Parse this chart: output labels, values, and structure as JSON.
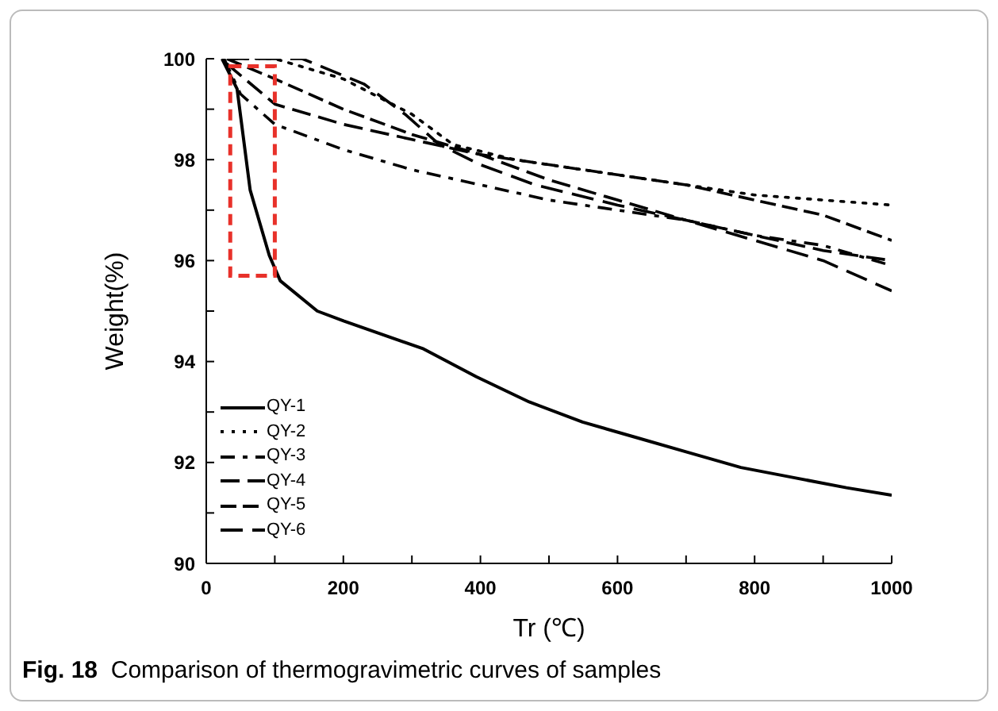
{
  "chart_data": {
    "type": "line",
    "xlabel": "Tr (℃)",
    "ylabel": "Weight(%)",
    "annotations": [
      "Fig. 18 Comparison of thermogravimetric curves of samples"
    ],
    "xlim": [
      0,
      1000
    ],
    "xticks": [
      0,
      {
        "value": 100,
        "label": null
      },
      200,
      {
        "value": 300,
        "label": null
      },
      400,
      {
        "value": 500,
        "label": null
      },
      600,
      {
        "value": 700,
        "label": null
      },
      800,
      {
        "value": 900,
        "label": null
      },
      1000
    ],
    "ylim": [
      90,
      100
    ],
    "yticks": [
      90,
      {
        "value": 91,
        "label": null
      },
      92,
      {
        "value": 93,
        "label": null
      },
      94,
      {
        "value": 95,
        "label": null
      },
      96,
      {
        "value": 97,
        "label": null
      },
      98,
      {
        "value": 99,
        "label": null
      },
      100
    ],
    "grid": false,
    "legend": "bottom left",
    "marker": "none",
    "series": [
      {
        "name": "QY-1",
        "color": "#000000",
        "line_style": "solid",
        "x": [
          23,
          45,
          64,
          92,
          108,
          162,
          201,
          317,
          394,
          471,
          549,
          626,
          703,
          780,
          857,
          934,
          1000
        ],
        "values": [
          100,
          99.4,
          97.4,
          96.1,
          95.6,
          95.0,
          94.8,
          94.25,
          93.7,
          93.2,
          92.8,
          92.5,
          92.2,
          91.9,
          91.7,
          91.5,
          91.35
        ]
      },
      {
        "name": "QY-2",
        "color": "#000000",
        "line_style": "dotted",
        "x": [
          40,
          100,
          200,
          300,
          360,
          450,
          600,
          700,
          800,
          900,
          1000
        ],
        "values": [
          100,
          100,
          99.6,
          98.9,
          98.3,
          98.0,
          97.7,
          97.5,
          97.3,
          97.2,
          97.1
        ]
      },
      {
        "name": "QY-3",
        "color": "#000000",
        "line_style": "dashed",
        "x": [
          26,
          50,
          100,
          200,
          300,
          400,
          500,
          600,
          700,
          800,
          900,
          1000
        ],
        "values": [
          100,
          99.3,
          98.7,
          98.2,
          97.8,
          97.5,
          97.2,
          97.0,
          96.8,
          96.5,
          96.3,
          95.9
        ]
      },
      {
        "name": "QY-4",
        "color": "#000000",
        "line_style": "dashed",
        "x": [
          30,
          100,
          200,
          300,
          400,
          500,
          600,
          700,
          800,
          900,
          1000
        ],
        "values": [
          99.9,
          99.1,
          98.7,
          98.4,
          98.1,
          97.6,
          97.2,
          96.8,
          96.5,
          96.2,
          96.0
        ]
      },
      {
        "name": "QY-5",
        "color": "#000000",
        "line_style": "dashed",
        "x": [
          30,
          100,
          200,
          300,
          400,
          500,
          600,
          700,
          800,
          900,
          1000
        ],
        "values": [
          100,
          99.6,
          99.0,
          98.5,
          98.1,
          97.9,
          97.7,
          97.5,
          97.2,
          96.9,
          96.4
        ]
      },
      {
        "name": "QY-6",
        "color": "#000000",
        "line_style": "dashed",
        "x": [
          30,
          140,
          230,
          290,
          340,
          400,
          480,
          600,
          700,
          800,
          900,
          1000
        ],
        "values": [
          100,
          100,
          99.5,
          98.9,
          98.3,
          97.9,
          97.5,
          97.1,
          96.8,
          96.4,
          96.0,
          95.4
        ]
      }
    ]
  }
}
